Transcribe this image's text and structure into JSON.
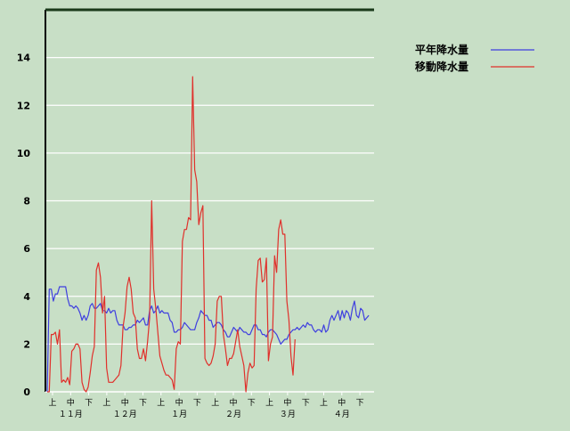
{
  "chart_data": {
    "type": "line",
    "title": "",
    "xlabel": "",
    "ylabel": "",
    "ylim": [
      0,
      16
    ],
    "yticks": [
      0,
      2,
      4,
      6,
      8,
      10,
      12,
      14
    ],
    "grid": true,
    "legend_position": "top-right",
    "x_period_labels": [
      "上",
      "中",
      "下",
      "上",
      "中",
      "下",
      "上",
      "中",
      "下",
      "上",
      "中",
      "下",
      "上",
      "中",
      "下",
      "上",
      "中",
      "下"
    ],
    "x_month_labels": [
      "１１月",
      "１２月",
      "１月",
      "２月",
      "３月",
      "４月"
    ],
    "series": [
      {
        "name": "平年降水量",
        "color": "#3f3fdf",
        "values": [
          0,
          4.3,
          4.3,
          3.8,
          4.1,
          4.1,
          4.4,
          4.4,
          4.4,
          4.4,
          3.9,
          3.6,
          3.6,
          3.5,
          3.6,
          3.5,
          3.3,
          3.0,
          3.2,
          3.0,
          3.2,
          3.6,
          3.7,
          3.5,
          3.5,
          3.6,
          3.7,
          3.4,
          3.4,
          3.3,
          3.5,
          3.3,
          3.4,
          3.4,
          3.0,
          2.8,
          2.8,
          2.8,
          2.6,
          2.6,
          2.7,
          2.7,
          2.8,
          2.8,
          3.0,
          2.9,
          3.0,
          3.1,
          2.8,
          2.8,
          3.4,
          3.6,
          3.3,
          3.4,
          3.6,
          3.3,
          3.4,
          3.3,
          3.3,
          3.3,
          3.0,
          2.9,
          2.5,
          2.5,
          2.6,
          2.6,
          2.7,
          2.9,
          2.8,
          2.7,
          2.6,
          2.6,
          2.6,
          2.9,
          3.1,
          3.4,
          3.3,
          3.2,
          3.2,
          3.0,
          3.0,
          2.7,
          2.8,
          2.9,
          2.9,
          2.8,
          2.6,
          2.5,
          2.3,
          2.3,
          2.5,
          2.7,
          2.6,
          2.5,
          2.7,
          2.6,
          2.5,
          2.5,
          2.4,
          2.4,
          2.6,
          2.8,
          2.8,
          2.6,
          2.6,
          2.4,
          2.4,
          2.3,
          2.5,
          2.6,
          2.6,
          2.5,
          2.4,
          2.2,
          2.0,
          2.1,
          2.2,
          2.2,
          2.4,
          2.5,
          2.6,
          2.6,
          2.7,
          2.6,
          2.7,
          2.8,
          2.7,
          2.9,
          2.8,
          2.8,
          2.6,
          2.5,
          2.6,
          2.6,
          2.5,
          2.8,
          2.5,
          2.6,
          3.0,
          3.2,
          3.0,
          3.2,
          3.4,
          3.0,
          3.4,
          3.1,
          3.4,
          3.3,
          3.0,
          3.5,
          3.8,
          3.2,
          3.1,
          3.5,
          3.4,
          3.0,
          3.1,
          3.2
        ]
      },
      {
        "name": "移動降水量",
        "color": "#e0302b",
        "values": [
          0,
          0,
          2.4,
          2.4,
          2.5,
          2.0,
          2.6,
          0.4,
          0.5,
          0.4,
          0.6,
          0.3,
          1.7,
          1.8,
          2.0,
          2.0,
          1.8,
          0.4,
          0.1,
          0,
          0.2,
          0.8,
          1.5,
          1.9,
          5.1,
          5.4,
          4.8,
          3.3,
          4.0,
          1.0,
          0.4,
          0.4,
          0.4,
          0.5,
          0.6,
          0.7,
          1.1,
          2.7,
          3.3,
          4.4,
          4.8,
          4.3,
          3.3,
          3.1,
          1.8,
          1.4,
          1.4,
          1.8,
          1.3,
          2.1,
          3.1,
          8.0,
          4.3,
          3.5,
          2.5,
          1.5,
          1.2,
          0.9,
          0.7,
          0.7,
          0.6,
          0.5,
          0.1,
          1.8,
          2.1,
          2.0,
          6.3,
          6.8,
          6.8,
          7.3,
          7.2,
          13.2,
          9.3,
          8.8,
          7.0,
          7.5,
          7.8,
          1.4,
          1.2,
          1.1,
          1.2,
          1.5,
          2.0,
          3.8,
          4.0,
          4.0,
          2.4,
          1.8,
          1.1,
          1.4,
          1.4,
          1.6,
          2.1,
          2.6,
          1.9,
          1.5,
          1.1,
          0,
          0.8,
          1.2,
          1.0,
          1.1,
          4.3,
          5.5,
          5.6,
          4.6,
          4.7,
          5.6,
          1.3,
          2.0,
          2.3,
          5.7,
          5.0,
          6.8,
          7.2,
          6.6,
          6.6,
          3.8,
          3.0,
          1.5,
          0.7,
          2.2
        ]
      }
    ]
  }
}
